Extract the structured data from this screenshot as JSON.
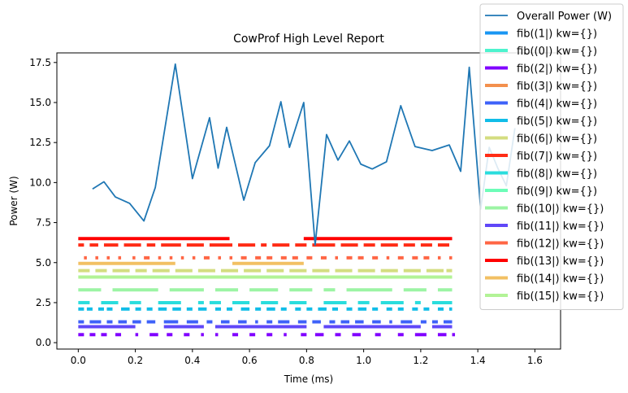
{
  "chart_data": {
    "type": "line",
    "title": "CowProf High Level Report",
    "xlabel": "Time (ms)",
    "ylabel": "Power (W)",
    "xlim": [
      -0.075,
      1.69
    ],
    "ylim": [
      -0.4,
      18.1
    ],
    "xticks": [
      0.0,
      0.2,
      0.4,
      0.6,
      0.8,
      1.0,
      1.2,
      1.4,
      1.6
    ],
    "xtick_labels": [
      "0.0",
      "0.2",
      "0.4",
      "0.6",
      "0.8",
      "1.0",
      "1.2",
      "1.4",
      "1.6"
    ],
    "yticks": [
      0.0,
      2.5,
      5.0,
      7.5,
      10.0,
      12.5,
      15.0,
      17.5
    ],
    "ytick_labels": [
      "0.0",
      "2.5",
      "5.0",
      "7.5",
      "10.0",
      "12.5",
      "15.0",
      "17.5"
    ],
    "grid": false,
    "legend_position": "top-right",
    "power_series": {
      "name": "Overall Power (W)",
      "color": "#1f77b4",
      "x": [
        0.05,
        0.09,
        0.13,
        0.18,
        0.23,
        0.27,
        0.34,
        0.4,
        0.46,
        0.49,
        0.52,
        0.58,
        0.62,
        0.67,
        0.71,
        0.74,
        0.79,
        0.83,
        0.87,
        0.91,
        0.95,
        0.99,
        1.03,
        1.08,
        1.13,
        1.18,
        1.24,
        1.3,
        1.34,
        1.37,
        1.41,
        1.44,
        1.47,
        1.5,
        1.53
      ],
      "y": [
        9.6,
        10.05,
        9.1,
        8.7,
        7.6,
        9.7,
        17.4,
        10.25,
        14.05,
        10.9,
        13.45,
        8.9,
        11.25,
        12.3,
        15.05,
        12.2,
        15.0,
        6.1,
        13.0,
        11.4,
        12.6,
        11.15,
        10.85,
        11.3,
        14.8,
        12.25,
        12.0,
        12.35,
        10.7,
        17.2,
        8.35,
        12.2,
        10.9,
        9.8,
        13.4
      ]
    },
    "series": [
      {
        "name": "fib((1|) kw={})",
        "color": "#1996f3",
        "level": 0.0,
        "segments": []
      },
      {
        "name": "fib((0|) kw={})",
        "color": "#4df3ce",
        "level": 0.0,
        "segments": []
      },
      {
        "name": "fib((2|) kw={})",
        "color": "#8000ff",
        "level": 0.5,
        "segments": [
          [
            0.0,
            0.02
          ],
          [
            0.04,
            0.06
          ],
          [
            0.08,
            0.1
          ],
          [
            0.13,
            0.15
          ],
          [
            0.2,
            0.21
          ],
          [
            0.25,
            0.28
          ],
          [
            0.31,
            0.33
          ],
          [
            0.37,
            0.39
          ],
          [
            0.43,
            0.44
          ],
          [
            0.48,
            0.49
          ],
          [
            0.54,
            0.56
          ],
          [
            0.6,
            0.62
          ],
          [
            0.66,
            0.68
          ],
          [
            0.72,
            0.73
          ],
          [
            0.78,
            0.8
          ],
          [
            0.83,
            0.86
          ],
          [
            0.9,
            0.92
          ],
          [
            0.96,
            0.99
          ],
          [
            1.04,
            1.06
          ],
          [
            1.12,
            1.14
          ],
          [
            1.18,
            1.22
          ],
          [
            1.26,
            1.29
          ],
          [
            1.31,
            1.32
          ]
        ]
      },
      {
        "name": "fib((3|) kw={})",
        "color": "#f3904d",
        "level": 0.0,
        "segments": []
      },
      {
        "name": "fib((4|) kw={})",
        "color": "#3e62f9",
        "level": 1.3,
        "segments": [
          [
            0.0,
            0.02
          ],
          [
            0.04,
            0.08
          ],
          [
            0.1,
            0.12
          ],
          [
            0.14,
            0.17
          ],
          [
            0.19,
            0.22
          ],
          [
            0.24,
            0.27
          ],
          [
            0.3,
            0.35
          ],
          [
            0.38,
            0.42
          ],
          [
            0.45,
            0.47
          ],
          [
            0.5,
            0.53
          ],
          [
            0.56,
            0.59
          ],
          [
            0.62,
            0.63
          ],
          [
            0.66,
            0.68
          ],
          [
            0.7,
            0.74
          ],
          [
            0.77,
            0.8
          ],
          [
            0.82,
            0.85
          ],
          [
            0.88,
            0.9
          ],
          [
            0.92,
            0.95
          ],
          [
            0.97,
            1.0
          ],
          [
            1.03,
            1.06
          ],
          [
            1.09,
            1.1
          ],
          [
            1.13,
            1.17
          ],
          [
            1.2,
            1.22
          ],
          [
            1.24,
            1.26
          ],
          [
            1.28,
            1.31
          ]
        ]
      },
      {
        "name": "fib((5|) kw={})",
        "color": "#11bde8",
        "level": 2.1,
        "segments": [
          [
            0.0,
            0.02
          ],
          [
            0.03,
            0.05
          ],
          [
            0.07,
            0.09
          ],
          [
            0.1,
            0.12
          ],
          [
            0.15,
            0.18
          ],
          [
            0.2,
            0.22
          ],
          [
            0.24,
            0.26
          ],
          [
            0.28,
            0.31
          ],
          [
            0.33,
            0.36
          ],
          [
            0.38,
            0.4
          ],
          [
            0.42,
            0.45
          ],
          [
            0.48,
            0.5
          ],
          [
            0.52,
            0.54
          ],
          [
            0.57,
            0.6
          ],
          [
            0.62,
            0.64
          ],
          [
            0.66,
            0.69
          ],
          [
            0.71,
            0.73
          ],
          [
            0.76,
            0.78
          ],
          [
            0.8,
            0.82
          ],
          [
            0.84,
            0.87
          ],
          [
            0.89,
            0.91
          ],
          [
            0.94,
            0.96
          ],
          [
            0.98,
            1.01
          ],
          [
            1.03,
            1.05
          ],
          [
            1.08,
            1.1
          ],
          [
            1.12,
            1.14
          ],
          [
            1.17,
            1.19
          ],
          [
            1.21,
            1.23
          ],
          [
            1.26,
            1.28
          ],
          [
            1.3,
            1.31
          ]
        ]
      },
      {
        "name": "fib((6|) kw={})",
        "color": "#d4dd80",
        "level": 4.5,
        "segments": [
          [
            0.0,
            0.04
          ],
          [
            0.06,
            0.1
          ],
          [
            0.12,
            0.18
          ],
          [
            0.2,
            0.24
          ],
          [
            0.26,
            0.32
          ],
          [
            0.34,
            0.4
          ],
          [
            0.42,
            0.48
          ],
          [
            0.5,
            0.56
          ],
          [
            0.58,
            0.64
          ],
          [
            0.66,
            0.72
          ],
          [
            0.74,
            0.8
          ],
          [
            0.82,
            0.88
          ],
          [
            0.9,
            0.96
          ],
          [
            0.98,
            1.04
          ],
          [
            1.06,
            1.12
          ],
          [
            1.14,
            1.2
          ],
          [
            1.22,
            1.28
          ],
          [
            1.29,
            1.31
          ]
        ]
      },
      {
        "name": "fib((7|) kw={})",
        "color": "#ff2c16",
        "level": 6.1,
        "segments": [
          [
            0.0,
            0.02
          ],
          [
            0.04,
            0.07
          ],
          [
            0.09,
            0.14
          ],
          [
            0.16,
            0.22
          ],
          [
            0.24,
            0.27
          ],
          [
            0.29,
            0.36
          ],
          [
            0.38,
            0.44
          ],
          [
            0.46,
            0.54
          ],
          [
            0.56,
            0.62
          ],
          [
            0.64,
            0.66
          ],
          [
            0.68,
            0.74
          ],
          [
            0.76,
            0.8
          ],
          [
            0.82,
            0.9
          ],
          [
            0.92,
            0.98
          ],
          [
            1.0,
            1.04
          ],
          [
            1.06,
            1.12
          ],
          [
            1.14,
            1.18
          ],
          [
            1.2,
            1.24
          ],
          [
            1.26,
            1.3
          ]
        ]
      },
      {
        "name": "fib((8|) kw={})",
        "color": "#2adddd",
        "level": 2.5,
        "segments": [
          [
            0.0,
            0.04
          ],
          [
            0.08,
            0.14
          ],
          [
            0.18,
            0.22
          ],
          [
            0.28,
            0.36
          ],
          [
            0.42,
            0.44
          ],
          [
            0.46,
            0.5
          ],
          [
            0.54,
            0.6
          ],
          [
            0.64,
            0.7
          ],
          [
            0.74,
            0.8
          ],
          [
            0.86,
            0.94
          ],
          [
            0.98,
            1.02
          ],
          [
            1.06,
            1.14
          ],
          [
            1.18,
            1.2
          ],
          [
            1.24,
            1.31
          ]
        ]
      },
      {
        "name": "fib((9|) kw={})",
        "color": "#6dfdb8",
        "level": 0.0,
        "segments": []
      },
      {
        "name": "fib((10|) kw={})",
        "color": "#9cf4a4",
        "level": 3.3,
        "segments": [
          [
            0.0,
            0.08
          ],
          [
            0.12,
            0.28
          ],
          [
            0.32,
            0.44
          ],
          [
            0.48,
            0.56
          ],
          [
            0.6,
            0.7
          ],
          [
            0.74,
            0.82
          ],
          [
            0.86,
            0.9
          ],
          [
            0.94,
            1.1
          ],
          [
            1.14,
            1.22
          ],
          [
            1.26,
            1.31
          ]
        ]
      },
      {
        "name": "fib((11|) kw={})",
        "color": "#6047f8",
        "level": 1.0,
        "segments": [
          [
            0.0,
            0.2
          ],
          [
            0.3,
            0.44
          ],
          [
            0.48,
            0.8
          ],
          [
            0.86,
            1.2
          ],
          [
            1.24,
            1.31
          ]
        ]
      },
      {
        "name": "fib((12|) kw={})",
        "color": "#ff6644",
        "level": 5.3,
        "segments": [
          [
            0.02,
            0.03
          ],
          [
            0.06,
            0.07
          ],
          [
            0.1,
            0.11
          ],
          [
            0.14,
            0.15
          ],
          [
            0.19,
            0.2
          ],
          [
            0.23,
            0.25
          ],
          [
            0.28,
            0.29
          ],
          [
            0.32,
            0.33
          ],
          [
            0.36,
            0.37
          ],
          [
            0.4,
            0.41
          ],
          [
            0.44,
            0.46
          ],
          [
            0.49,
            0.5
          ],
          [
            0.53,
            0.54
          ],
          [
            0.57,
            0.59
          ],
          [
            0.62,
            0.64
          ],
          [
            0.66,
            0.68
          ],
          [
            0.71,
            0.73
          ],
          [
            0.75,
            0.77
          ],
          [
            0.8,
            0.82
          ],
          [
            0.85,
            0.87
          ],
          [
            0.9,
            0.91
          ],
          [
            0.94,
            0.96
          ],
          [
            0.98,
            1.0
          ],
          [
            1.03,
            1.05
          ],
          [
            1.08,
            1.09
          ],
          [
            1.12,
            1.14
          ],
          [
            1.17,
            1.19
          ],
          [
            1.21,
            1.23
          ],
          [
            1.26,
            1.27
          ],
          [
            1.3,
            1.31
          ]
        ]
      },
      {
        "name": "fib((13|) kw={})",
        "color": "#ff0000",
        "level": 6.5,
        "segments": [
          [
            0.0,
            0.53
          ],
          [
            0.79,
            1.31
          ]
        ]
      },
      {
        "name": "fib((14|) kw={})",
        "color": "#f2c063",
        "level": 4.95,
        "segments": [
          [
            0.0,
            0.34
          ],
          [
            0.54,
            0.79
          ]
        ]
      },
      {
        "name": "fib((15|) kw={})",
        "color": "#b2f396",
        "level": 4.1,
        "segments": [
          [
            0.0,
            1.31
          ]
        ]
      }
    ]
  }
}
